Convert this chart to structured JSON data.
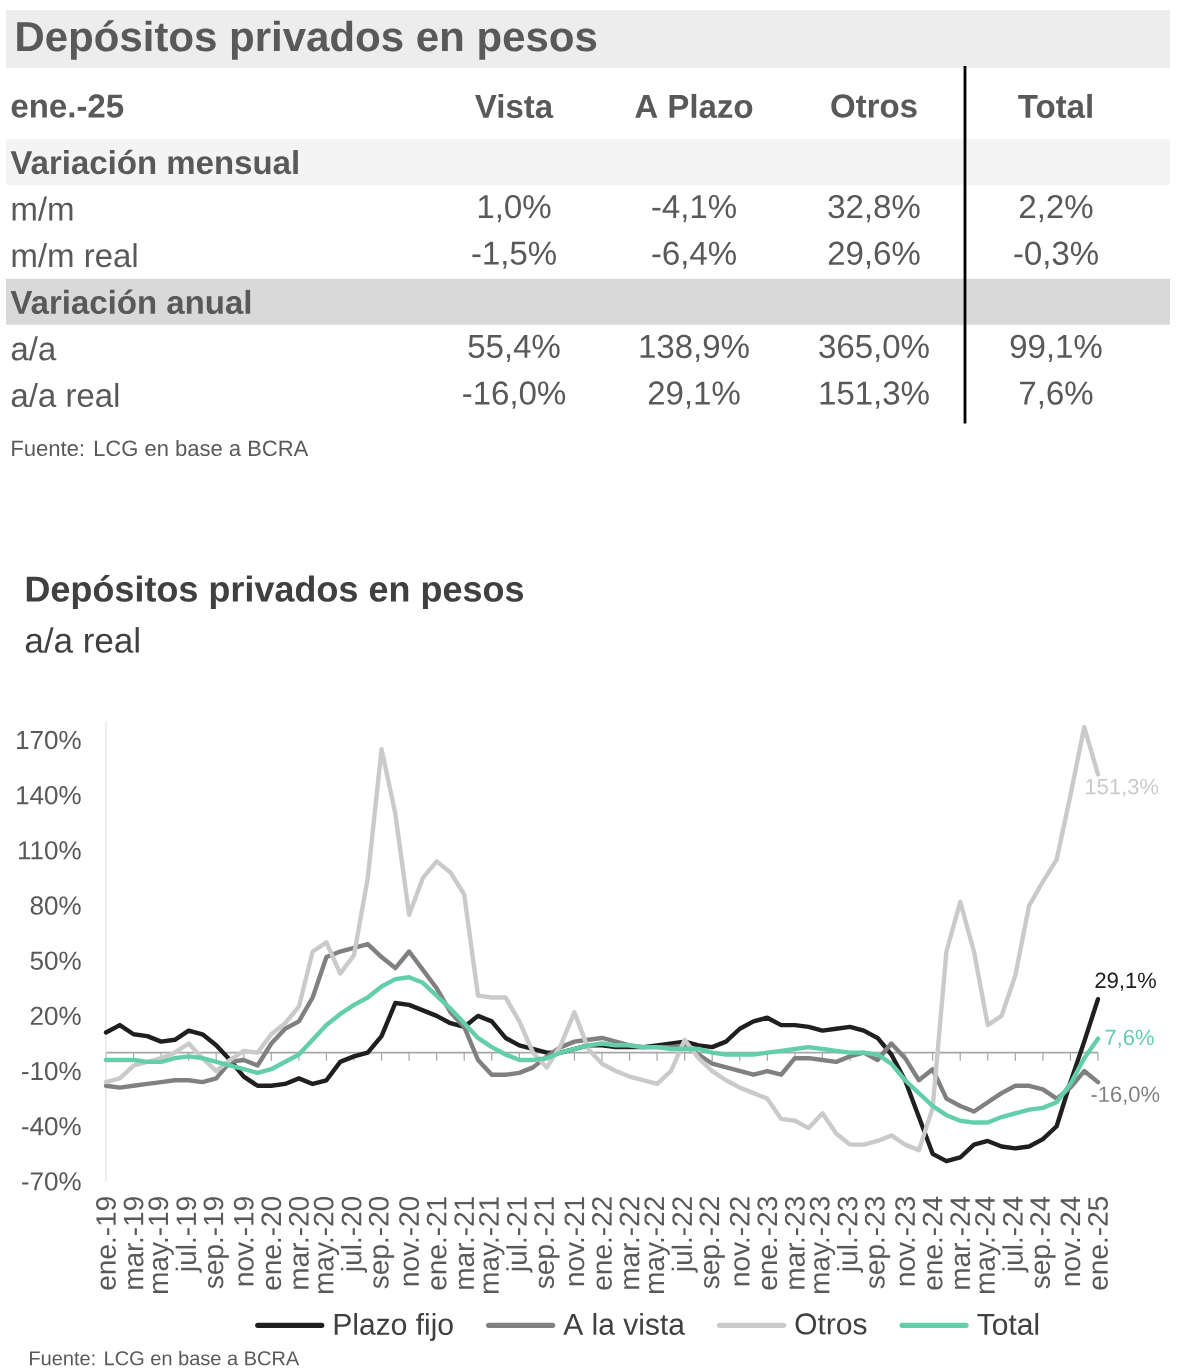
{
  "chart_data": [
    {
      "type": "other",
      "title": "Depósitos privados en pesos",
      "subtitle": "ene.-25",
      "categories": [
        "Vista",
        "A Plazo",
        "Otros",
        "Total"
      ],
      "y_categories": [
        "m/m",
        "m/m real",
        "a/a",
        "a/a real"
      ],
      "cell_labels": [
        [
          "1,0%",
          "-4,1%",
          "32,8%",
          "2,2%"
        ],
        [
          "-1,5%",
          "-6,4%",
          "29,6%",
          "-0,3%"
        ],
        [
          "55,4%",
          "138,9%",
          "365,0%",
          "99,1%"
        ],
        [
          "-16,0%",
          "29,1%",
          "151,3%",
          "7,6%"
        ]
      ],
      "annotations": [
        "Variación mensual",
        "Variación anual",
        "Fuente: LCG en base a BCRA"
      ]
    },
    {
      "type": "line",
      "title": "Depósitos privados en pesos",
      "subtitle": "a/a real",
      "categories": [
        "ene.-19",
        null,
        "mar.-19",
        null,
        "may.-19",
        null,
        "jul.-19",
        null,
        "sep.-19",
        null,
        "nov.-19",
        null,
        "ene.-20",
        null,
        "mar.-20",
        null,
        "may.-20",
        null,
        "jul.-20",
        null,
        "sep.-20",
        null,
        "nov.-20",
        null,
        "ene.-21",
        null,
        "mar.-21",
        null,
        "may.-21",
        null,
        "jul.-21",
        null,
        "sep.-21",
        null,
        "nov.-21",
        null,
        "ene.-22",
        null,
        "mar.-22",
        null,
        "may.-22",
        null,
        "jul.-22",
        null,
        "sep.-22",
        null,
        "nov.-22",
        null,
        "ene.-23",
        null,
        "mar.-23",
        null,
        "may.-23",
        null,
        "jul.-23",
        null,
        "sep.-23",
        null,
        "nov.-23",
        null,
        "ene.-24",
        null,
        "mar.-24",
        null,
        "may.-24",
        null,
        "jul.-24",
        null,
        "sep.-24",
        null,
        "nov.-24",
        null,
        "ene.-25"
      ],
      "series": [
        {
          "name": "Plazo fijo",
          "color": "#1f1f1f",
          "values": [
            11,
            15,
            10,
            9,
            6,
            7,
            12,
            10,
            4,
            -4,
            -13,
            -18,
            -18,
            -17,
            -14,
            -17,
            -15,
            -5,
            -2,
            0,
            9,
            27,
            26,
            23,
            20,
            16,
            14,
            20,
            17,
            8,
            4,
            2,
            0,
            0,
            2,
            4,
            4,
            3,
            3,
            3,
            4,
            5,
            6,
            4,
            3,
            6,
            13,
            17,
            19,
            15,
            15,
            14,
            12,
            13,
            14,
            12,
            8,
            -1,
            -15,
            -35,
            -55,
            -59,
            -57,
            -50,
            -48,
            -51,
            -52,
            -51,
            -47,
            -40,
            -16,
            6,
            29.1
          ],
          "value_labels": [
            null,
            null,
            null,
            null,
            null,
            null,
            null,
            null,
            null,
            null,
            null,
            null,
            null,
            null,
            null,
            null,
            null,
            null,
            null,
            null,
            null,
            null,
            null,
            null,
            null,
            null,
            null,
            null,
            null,
            null,
            null,
            null,
            null,
            null,
            null,
            null,
            null,
            null,
            null,
            null,
            null,
            null,
            null,
            null,
            null,
            null,
            null,
            null,
            null,
            null,
            null,
            null,
            null,
            null,
            null,
            null,
            null,
            null,
            null,
            null,
            null,
            null,
            null,
            null,
            null,
            null,
            null,
            null,
            null,
            null,
            null,
            null,
            "29,1%"
          ]
        },
        {
          "name": "A la vista",
          "color": "#808080",
          "values": [
            -18,
            -19,
            -18,
            -17,
            -16,
            -15,
            -15,
            -16,
            -14,
            -5,
            -4,
            -7,
            5,
            13,
            17,
            30,
            52,
            55,
            57,
            59,
            52,
            46,
            55,
            45,
            35,
            22,
            14,
            -4,
            -12,
            -12,
            -11,
            -8,
            -2,
            3,
            6,
            7,
            8,
            6,
            4,
            3,
            3,
            3,
            4,
            -1,
            -6,
            -8,
            -10,
            -12,
            -10,
            -12,
            -3,
            -3,
            -4,
            -5,
            -2,
            0,
            -4,
            5,
            -3,
            -15,
            -9,
            -25,
            -29,
            -32,
            -27,
            -22,
            -18,
            -18,
            -20,
            -25,
            -19,
            -10,
            -16.0
          ],
          "value_labels": [
            null,
            null,
            null,
            null,
            null,
            null,
            null,
            null,
            null,
            null,
            null,
            null,
            null,
            null,
            null,
            null,
            null,
            null,
            null,
            null,
            null,
            null,
            null,
            null,
            null,
            null,
            null,
            null,
            null,
            null,
            null,
            null,
            null,
            null,
            null,
            null,
            null,
            null,
            null,
            null,
            null,
            null,
            null,
            null,
            null,
            null,
            null,
            null,
            null,
            null,
            null,
            null,
            null,
            null,
            null,
            null,
            null,
            null,
            null,
            null,
            null,
            null,
            null,
            null,
            null,
            null,
            null,
            null,
            null,
            null,
            null,
            null,
            "-16,0%"
          ]
        },
        {
          "name": "Otros",
          "color": "#cacaca",
          "values": [
            -16,
            -14,
            -7,
            -5,
            -3,
            0,
            5,
            -3,
            -10,
            -4,
            1,
            0,
            10,
            16,
            25,
            55,
            60,
            43,
            53,
            95,
            165,
            130,
            75,
            95,
            104,
            98,
            86,
            31,
            30,
            30,
            17,
            0,
            -8,
            4,
            22,
            2,
            -6,
            -10,
            -13,
            -15,
            -17,
            -10,
            7,
            -3,
            -10,
            -15,
            -19,
            -22,
            -25,
            -36,
            -37,
            -41,
            -33,
            -44,
            -50,
            -50,
            -48,
            -45,
            -50,
            -53,
            -30,
            55,
            82,
            55,
            15,
            20,
            42,
            80,
            93,
            105,
            140,
            177,
            151.3
          ],
          "value_labels": [
            null,
            null,
            null,
            null,
            null,
            null,
            null,
            null,
            null,
            null,
            null,
            null,
            null,
            null,
            null,
            null,
            null,
            null,
            null,
            null,
            null,
            null,
            null,
            null,
            null,
            null,
            null,
            null,
            null,
            null,
            null,
            null,
            null,
            null,
            null,
            null,
            null,
            null,
            null,
            null,
            null,
            null,
            null,
            null,
            null,
            null,
            null,
            null,
            null,
            null,
            null,
            null,
            null,
            null,
            null,
            null,
            null,
            null,
            null,
            null,
            null,
            null,
            null,
            null,
            null,
            null,
            null,
            null,
            null,
            null,
            null,
            null,
            "151,3%"
          ]
        },
        {
          "name": "Total",
          "color": "#63cfa8",
          "values": [
            -4,
            -4,
            -4,
            -5,
            -5,
            -3,
            -2,
            -3,
            -5,
            -7,
            -9,
            -11,
            -9,
            -5,
            -1,
            7,
            15,
            21,
            26,
            30,
            36,
            40,
            41,
            38,
            31,
            24,
            16,
            8,
            3,
            -1,
            -4,
            -4,
            -3,
            0,
            2,
            4,
            5,
            4,
            4,
            3,
            3,
            2,
            2,
            2,
            0,
            -1,
            -1,
            -1,
            0,
            1,
            2,
            3,
            2,
            1,
            0,
            0,
            -1,
            -6,
            -15,
            -22,
            -29,
            -34,
            -37,
            -38,
            -38,
            -35,
            -33,
            -31,
            -30,
            -27,
            -17,
            -3,
            7.6
          ],
          "value_labels": [
            null,
            null,
            null,
            null,
            null,
            null,
            null,
            null,
            null,
            null,
            null,
            null,
            null,
            null,
            null,
            null,
            null,
            null,
            null,
            null,
            null,
            null,
            null,
            null,
            null,
            null,
            null,
            null,
            null,
            null,
            null,
            null,
            null,
            null,
            null,
            null,
            null,
            null,
            null,
            null,
            null,
            null,
            null,
            null,
            null,
            null,
            null,
            null,
            null,
            null,
            null,
            null,
            null,
            null,
            null,
            null,
            null,
            null,
            null,
            null,
            null,
            null,
            null,
            null,
            null,
            null,
            null,
            null,
            null,
            null,
            null,
            null,
            "7,6%"
          ]
        }
      ],
      "ylim": [
        -70,
        180
      ],
      "yticks": [
        {
          "value": -70,
          "label": "-70%"
        },
        {
          "value": -40,
          "label": "-40%"
        },
        {
          "value": -10,
          "label": "-10%"
        },
        {
          "value": 20,
          "label": "20%"
        },
        {
          "value": 50,
          "label": "50%"
        },
        {
          "value": 80,
          "label": "80%"
        },
        {
          "value": 110,
          "label": "110%"
        },
        {
          "value": 140,
          "label": "140%"
        },
        {
          "value": 170,
          "label": "170%"
        }
      ],
      "legend": "bottom",
      "annotations": [
        "Fuente: LCG en base a BCRA"
      ]
    }
  ]
}
